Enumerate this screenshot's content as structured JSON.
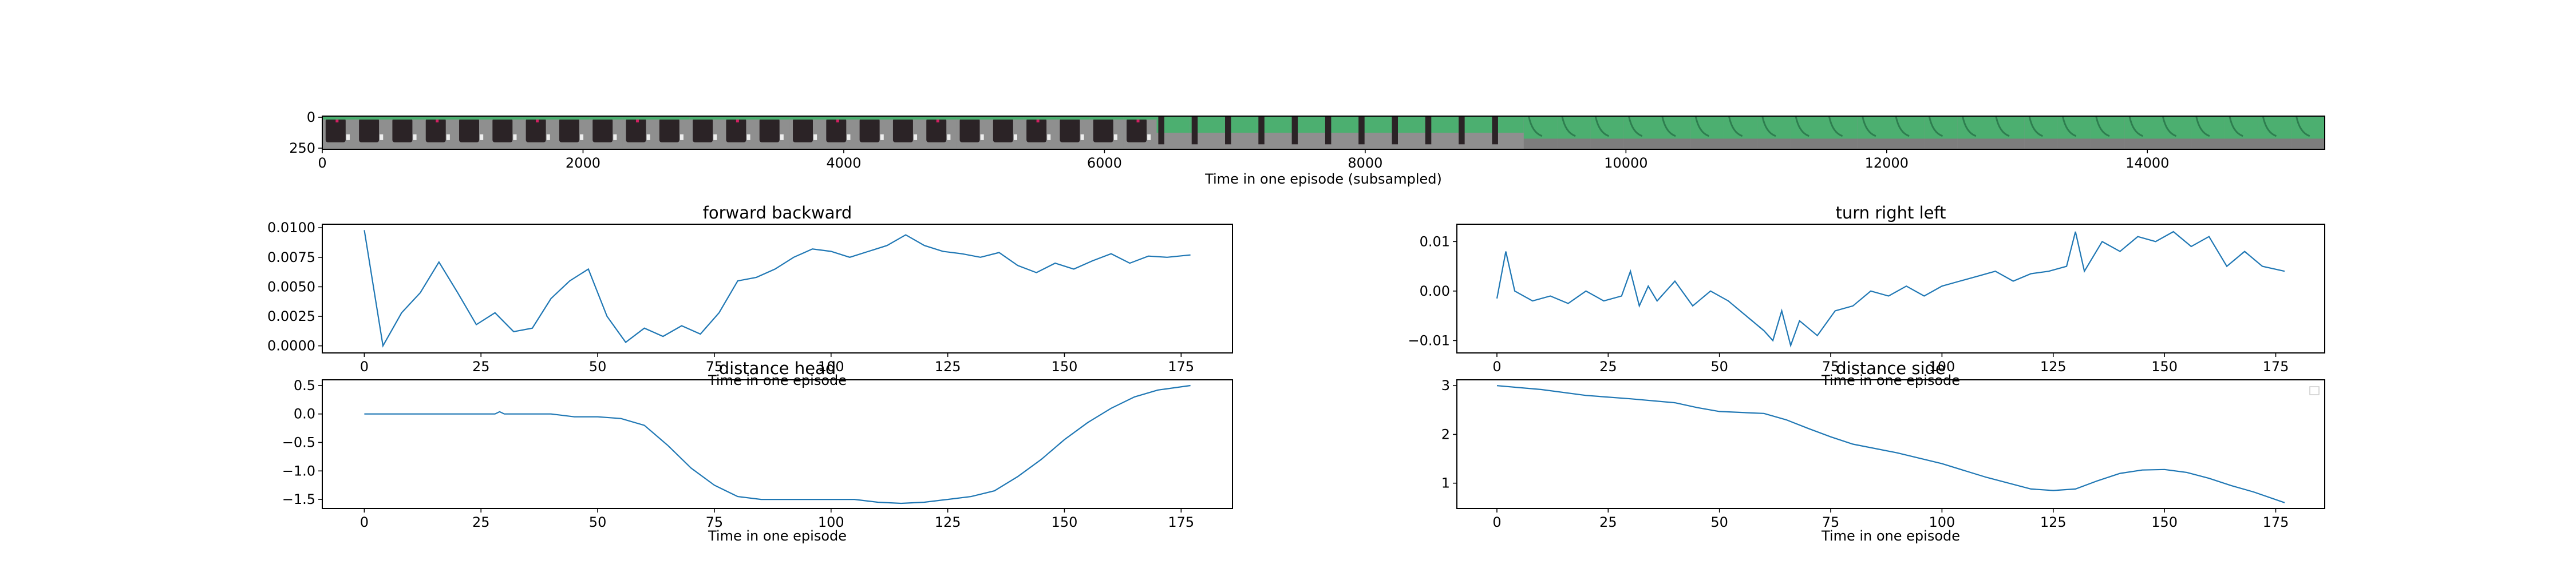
{
  "chart_data": [
    {
      "type": "image-strip",
      "xlabel": "Time in one episode (subsampled)",
      "xlim": [
        0,
        15360
      ],
      "xticks": [
        0,
        2000,
        4000,
        6000,
        8000,
        10000,
        12000,
        14000
      ],
      "ylim": [
        250,
        0
      ],
      "yticks": [
        0,
        250
      ],
      "frames": 60,
      "colors": {
        "floor": "#8f8f8f",
        "block": "#2b2326",
        "wall": "#4caf70",
        "accent": "#d02060"
      }
    },
    {
      "type": "line",
      "title": "forward backward",
      "xlabel": "Time in one episode",
      "xlim": [
        -9,
        186
      ],
      "ylim": [
        -0.0006,
        0.0103
      ],
      "xticks": [
        0,
        25,
        50,
        75,
        100,
        125,
        150,
        175
      ],
      "yticks": [
        0.0,
        0.0025,
        0.005,
        0.0075,
        0.01
      ],
      "ytick_labels": [
        "0.0000",
        "0.0025",
        "0.0050",
        "0.0075",
        "0.0100"
      ],
      "x": [
        0,
        4,
        8,
        12,
        16,
        20,
        24,
        28,
        32,
        36,
        40,
        44,
        48,
        52,
        56,
        60,
        64,
        68,
        72,
        76,
        80,
        84,
        88,
        92,
        96,
        100,
        104,
        108,
        112,
        116,
        120,
        124,
        128,
        132,
        136,
        140,
        144,
        148,
        152,
        156,
        160,
        164,
        168,
        172,
        177
      ],
      "values": [
        0.0098,
        0.0,
        0.0028,
        0.0045,
        0.0071,
        0.0045,
        0.0018,
        0.0028,
        0.0012,
        0.0015,
        0.004,
        0.0055,
        0.0065,
        0.0025,
        0.0003,
        0.0015,
        0.0008,
        0.0017,
        0.001,
        0.0028,
        0.0055,
        0.0058,
        0.0065,
        0.0075,
        0.0082,
        0.008,
        0.0075,
        0.008,
        0.0085,
        0.0094,
        0.0085,
        0.008,
        0.0078,
        0.0075,
        0.0079,
        0.0068,
        0.0062,
        0.007,
        0.0065,
        0.0072,
        0.0078,
        0.007,
        0.0076,
        0.0075,
        0.0077
      ],
      "color": "#1f77b4"
    },
    {
      "type": "line",
      "title": "turn right left",
      "xlabel": "Time in one episode",
      "xlim": [
        -9,
        186
      ],
      "ylim": [
        -0.0125,
        0.0135
      ],
      "xticks": [
        0,
        25,
        50,
        75,
        100,
        125,
        150,
        175
      ],
      "yticks": [
        -0.01,
        0.0,
        0.01
      ],
      "ytick_labels": [
        "−0.01",
        "0.00",
        "0.01"
      ],
      "x": [
        0,
        2,
        4,
        8,
        12,
        16,
        20,
        24,
        28,
        30,
        32,
        34,
        36,
        40,
        44,
        48,
        52,
        56,
        60,
        62,
        64,
        66,
        68,
        72,
        76,
        80,
        84,
        88,
        92,
        96,
        100,
        104,
        108,
        112,
        116,
        120,
        124,
        128,
        130,
        132,
        136,
        140,
        144,
        148,
        152,
        156,
        160,
        164,
        168,
        172,
        177
      ],
      "values": [
        -0.0015,
        0.008,
        0.0,
        -0.002,
        -0.001,
        -0.0025,
        0.0,
        -0.002,
        -0.001,
        0.004,
        -0.003,
        0.001,
        -0.002,
        0.002,
        -0.003,
        0.0,
        -0.002,
        -0.005,
        -0.008,
        -0.01,
        -0.004,
        -0.011,
        -0.006,
        -0.009,
        -0.004,
        -0.003,
        0.0,
        -0.001,
        0.001,
        -0.001,
        0.001,
        0.002,
        0.003,
        0.004,
        0.002,
        0.0035,
        0.004,
        0.005,
        0.012,
        0.004,
        0.01,
        0.008,
        0.011,
        0.01,
        0.012,
        0.009,
        0.011,
        0.005,
        0.008,
        0.005,
        0.004
      ],
      "color": "#1f77b4"
    },
    {
      "type": "line",
      "title": "distance head",
      "xlabel": "Time in one episode",
      "xlim": [
        -9,
        186
      ],
      "ylim": [
        -1.66,
        0.6
      ],
      "xticks": [
        0,
        25,
        50,
        75,
        100,
        125,
        150,
        175
      ],
      "yticks": [
        -1.5,
        -1.0,
        -0.5,
        0.0,
        0.5
      ],
      "ytick_labels": [
        "−1.5",
        "−1.0",
        "−0.5",
        "0.0",
        "0.5"
      ],
      "x": [
        0,
        25,
        28,
        29,
        30,
        40,
        45,
        50,
        55,
        60,
        65,
        70,
        75,
        80,
        85,
        95,
        105,
        110,
        115,
        120,
        125,
        130,
        135,
        140,
        145,
        150,
        155,
        160,
        165,
        170,
        177
      ],
      "values": [
        0.0,
        0.0,
        0.0,
        0.04,
        0.0,
        0.0,
        -0.05,
        -0.05,
        -0.08,
        -0.2,
        -0.55,
        -0.95,
        -1.25,
        -1.45,
        -1.5,
        -1.5,
        -1.5,
        -1.55,
        -1.57,
        -1.55,
        -1.5,
        -1.45,
        -1.35,
        -1.1,
        -0.8,
        -0.45,
        -0.15,
        0.1,
        0.3,
        0.42,
        0.5
      ],
      "color": "#1f77b4"
    },
    {
      "type": "line",
      "title": "distance side",
      "xlabel": "Time in one episode",
      "xlim": [
        -9,
        186
      ],
      "ylim": [
        0.48,
        3.12
      ],
      "xticks": [
        0,
        25,
        50,
        75,
        100,
        125,
        150,
        175
      ],
      "yticks": [
        1,
        2,
        3
      ],
      "ytick_labels": [
        "1",
        "2",
        "3"
      ],
      "x": [
        0,
        10,
        20,
        30,
        40,
        45,
        50,
        60,
        65,
        70,
        75,
        80,
        90,
        100,
        110,
        120,
        125,
        130,
        135,
        140,
        145,
        150,
        155,
        160,
        165,
        170,
        177
      ],
      "values": [
        3.0,
        2.92,
        2.8,
        2.73,
        2.65,
        2.55,
        2.47,
        2.43,
        2.3,
        2.12,
        1.95,
        1.8,
        1.62,
        1.4,
        1.12,
        0.88,
        0.85,
        0.88,
        1.05,
        1.2,
        1.27,
        1.28,
        1.22,
        1.1,
        0.95,
        0.82,
        0.6
      ],
      "color": "#1f77b4"
    }
  ]
}
